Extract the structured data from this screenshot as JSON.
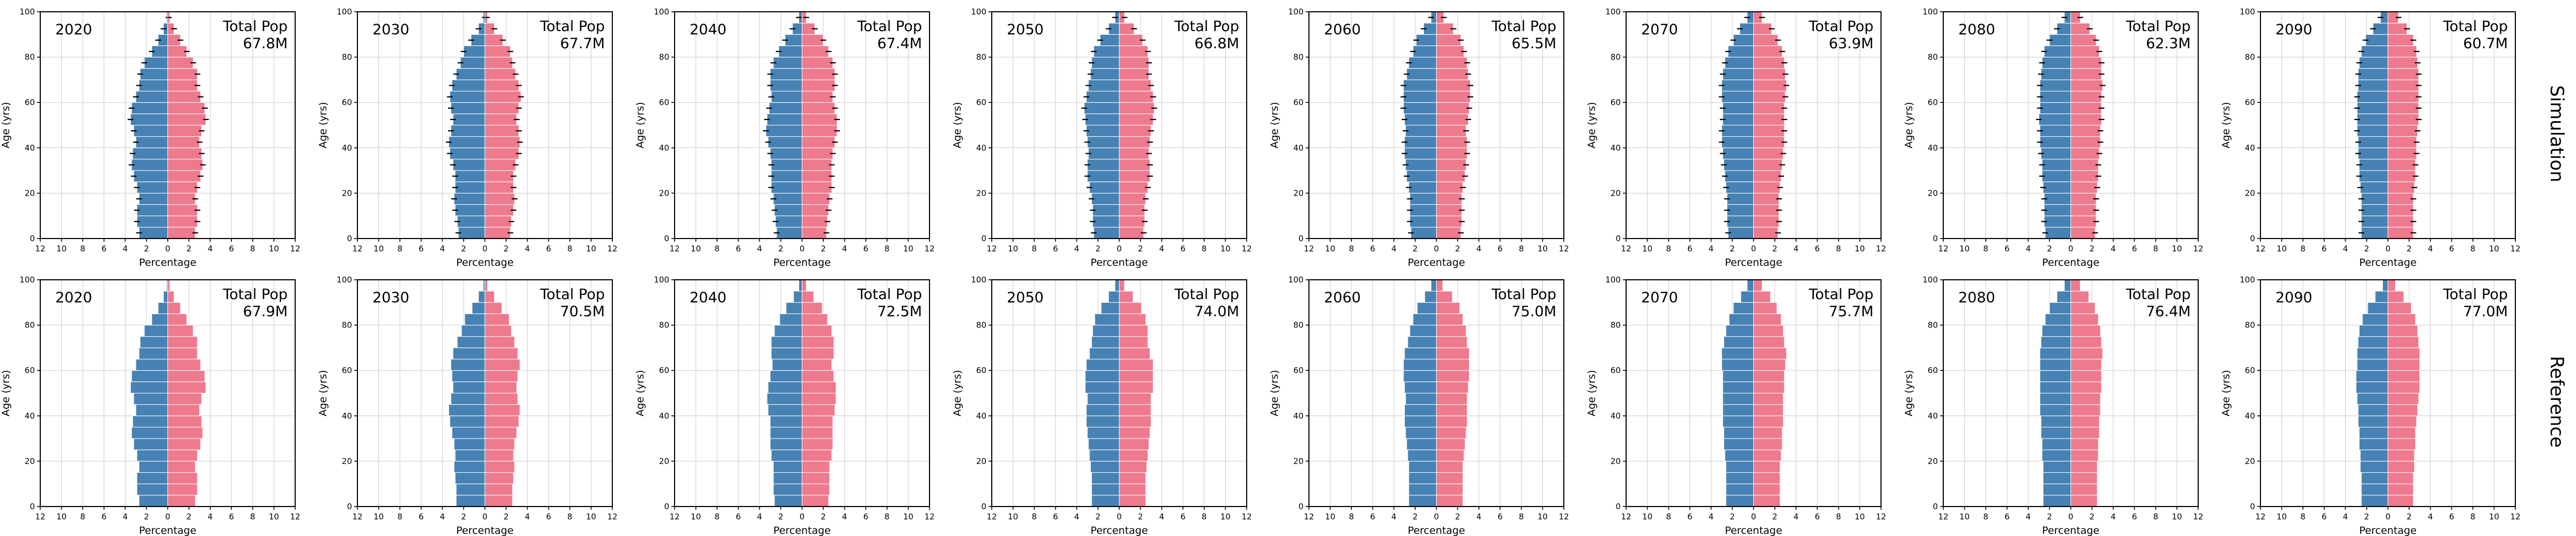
{
  "chart_data": {
    "type": "bar",
    "subtype": "population-pyramid-grid",
    "grid": {
      "rows": 2,
      "cols": 8
    },
    "row_labels": [
      "Simulation",
      "Reference"
    ],
    "total_pop_label": "Total Pop",
    "xlabel": "Percentage",
    "ylabel": "Age (yrs)",
    "x_tick_abs": [
      12,
      10,
      8,
      6,
      4,
      2,
      0,
      2,
      4,
      6,
      8,
      10,
      12
    ],
    "y_ticks": [
      0,
      20,
      40,
      60,
      80,
      100
    ],
    "xlim": [
      -12,
      12
    ],
    "ylim": [
      0,
      100
    ],
    "age_bin_years": 5,
    "grid_on": true,
    "colors": {
      "male": "#4682b4",
      "female": "#ee7a8e",
      "gridline": "#cccccc",
      "spine": "#000000",
      "error_bar": "#000000",
      "background": "#ffffff"
    },
    "charts": [
      {
        "row": "Simulation",
        "year": "2020",
        "total_pop": "67.8M",
        "error_bars": true,
        "error_half_pct": 0.27,
        "male_pct": [
          2.7,
          2.9,
          2.9,
          2.7,
          2.9,
          3.2,
          3.4,
          3.3,
          3.0,
          3.2,
          3.5,
          3.4,
          3.0,
          2.7,
          2.6,
          2.2,
          1.5,
          0.9,
          0.4,
          0.1
        ],
        "female_pct": [
          2.6,
          2.8,
          2.8,
          2.6,
          2.8,
          3.1,
          3.3,
          3.2,
          3.0,
          3.2,
          3.6,
          3.5,
          3.1,
          2.8,
          2.8,
          2.4,
          1.8,
          1.2,
          0.6,
          0.2
        ]
      },
      {
        "row": "Simulation",
        "year": "2030",
        "total_pop": "67.7M",
        "error_bars": true,
        "error_half_pct": 0.27,
        "male_pct": [
          2.5,
          2.6,
          2.8,
          2.9,
          2.8,
          2.8,
          3.0,
          3.3,
          3.4,
          3.2,
          3.0,
          3.2,
          3.3,
          3.1,
          2.7,
          2.3,
          2.0,
          1.3,
          0.6,
          0.15
        ],
        "female_pct": [
          2.4,
          2.5,
          2.7,
          2.8,
          2.7,
          2.7,
          2.9,
          3.2,
          3.3,
          3.2,
          3.0,
          3.2,
          3.4,
          3.2,
          2.9,
          2.6,
          2.4,
          1.7,
          0.9,
          0.25
        ]
      },
      {
        "row": "Simulation",
        "year": "2040",
        "total_pop": "67.4M",
        "error_bars": true,
        "error_half_pct": 0.27,
        "male_pct": [
          2.4,
          2.5,
          2.6,
          2.7,
          2.9,
          2.9,
          2.9,
          3.0,
          3.2,
          3.4,
          3.3,
          3.1,
          2.9,
          3.0,
          3.0,
          2.7,
          2.2,
          1.6,
          0.9,
          0.3
        ],
        "female_pct": [
          2.3,
          2.4,
          2.5,
          2.6,
          2.8,
          2.8,
          2.8,
          2.9,
          3.1,
          3.3,
          3.3,
          3.1,
          2.9,
          3.1,
          3.1,
          2.9,
          2.5,
          2.0,
          1.2,
          0.4
        ]
      },
      {
        "row": "Simulation",
        "year": "2050",
        "total_pop": "66.8M",
        "error_bars": true,
        "error_half_pct": 0.27,
        "male_pct": [
          2.4,
          2.5,
          2.5,
          2.6,
          2.8,
          3.0,
          3.0,
          2.9,
          3.0,
          3.1,
          3.2,
          3.3,
          3.1,
          2.9,
          2.7,
          2.6,
          2.4,
          1.8,
          1.0,
          0.4
        ],
        "female_pct": [
          2.3,
          2.4,
          2.4,
          2.5,
          2.7,
          2.9,
          2.9,
          2.8,
          2.9,
          3.0,
          3.2,
          3.3,
          3.2,
          3.0,
          2.8,
          2.8,
          2.7,
          2.2,
          1.4,
          0.5
        ]
      },
      {
        "row": "Simulation",
        "year": "2060",
        "total_pop": "65.5M",
        "error_bars": true,
        "error_half_pct": 0.27,
        "male_pct": [
          2.4,
          2.5,
          2.5,
          2.5,
          2.6,
          2.8,
          2.9,
          3.0,
          3.0,
          2.9,
          3.0,
          3.1,
          3.1,
          3.1,
          2.8,
          2.6,
          2.2,
          1.9,
          1.2,
          0.5
        ],
        "female_pct": [
          2.3,
          2.4,
          2.4,
          2.4,
          2.5,
          2.7,
          2.8,
          2.9,
          2.9,
          2.8,
          3.0,
          3.1,
          3.2,
          3.2,
          3.0,
          2.9,
          2.6,
          2.3,
          1.6,
          0.7
        ]
      },
      {
        "row": "Simulation",
        "year": "2070",
        "total_pop": "63.9M",
        "error_bars": true,
        "error_half_pct": 0.27,
        "male_pct": [
          2.4,
          2.5,
          2.5,
          2.5,
          2.6,
          2.7,
          2.8,
          2.9,
          3.0,
          3.0,
          2.9,
          2.9,
          3.0,
          3.0,
          2.9,
          2.7,
          2.4,
          1.9,
          1.3,
          0.6
        ],
        "female_pct": [
          2.3,
          2.4,
          2.4,
          2.4,
          2.5,
          2.6,
          2.7,
          2.8,
          2.9,
          2.9,
          2.9,
          2.9,
          3.0,
          3.1,
          3.0,
          2.9,
          2.7,
          2.3,
          1.7,
          0.8
        ]
      },
      {
        "row": "Simulation",
        "year": "2080",
        "total_pop": "62.3M",
        "error_bars": true,
        "error_half_pct": 0.27,
        "male_pct": [
          2.4,
          2.5,
          2.5,
          2.5,
          2.6,
          2.7,
          2.7,
          2.8,
          2.9,
          2.9,
          3.0,
          2.9,
          2.9,
          2.9,
          2.8,
          2.7,
          2.5,
          2.0,
          1.3,
          0.6
        ],
        "female_pct": [
          2.3,
          2.4,
          2.4,
          2.4,
          2.5,
          2.6,
          2.6,
          2.7,
          2.8,
          2.8,
          2.9,
          2.9,
          2.9,
          3.0,
          2.9,
          2.9,
          2.7,
          2.4,
          1.8,
          0.9
        ]
      },
      {
        "row": "Simulation",
        "year": "2090",
        "total_pop": "60.7M",
        "error_bars": true,
        "error_half_pct": 0.27,
        "male_pct": [
          2.5,
          2.5,
          2.5,
          2.5,
          2.6,
          2.7,
          2.7,
          2.8,
          2.8,
          2.9,
          2.9,
          2.9,
          2.9,
          2.8,
          2.8,
          2.7,
          2.5,
          2.1,
          1.4,
          0.7
        ],
        "female_pct": [
          2.4,
          2.4,
          2.4,
          2.4,
          2.5,
          2.6,
          2.6,
          2.7,
          2.7,
          2.8,
          2.9,
          2.9,
          2.9,
          2.9,
          2.9,
          2.8,
          2.7,
          2.4,
          1.8,
          1.0
        ]
      },
      {
        "row": "Reference",
        "year": "2020",
        "total_pop": "67.9M",
        "error_bars": false,
        "error_half_pct": 0,
        "male_pct": [
          2.7,
          2.9,
          2.9,
          2.7,
          2.9,
          3.2,
          3.4,
          3.3,
          3.0,
          3.2,
          3.5,
          3.4,
          3.0,
          2.7,
          2.6,
          2.2,
          1.5,
          0.9,
          0.4,
          0.1
        ],
        "female_pct": [
          2.6,
          2.8,
          2.8,
          2.6,
          2.8,
          3.1,
          3.3,
          3.2,
          3.0,
          3.2,
          3.6,
          3.5,
          3.1,
          2.8,
          2.8,
          2.4,
          1.8,
          1.2,
          0.6,
          0.2
        ]
      },
      {
        "row": "Reference",
        "year": "2030",
        "total_pop": "70.5M",
        "error_bars": false,
        "error_half_pct": 0,
        "male_pct": [
          2.7,
          2.7,
          2.8,
          2.9,
          2.8,
          2.9,
          3.1,
          3.3,
          3.4,
          3.2,
          3.0,
          3.1,
          3.2,
          3.0,
          2.6,
          2.2,
          1.9,
          1.2,
          0.6,
          0.15
        ],
        "female_pct": [
          2.6,
          2.6,
          2.7,
          2.8,
          2.7,
          2.8,
          3.0,
          3.2,
          3.3,
          3.1,
          3.0,
          3.1,
          3.3,
          3.1,
          2.8,
          2.5,
          2.3,
          1.6,
          0.9,
          0.25
        ]
      },
      {
        "row": "Reference",
        "year": "2040",
        "total_pop": "72.5M",
        "error_bars": false,
        "error_half_pct": 0,
        "male_pct": [
          2.6,
          2.7,
          2.7,
          2.7,
          2.9,
          3.0,
          3.0,
          3.0,
          3.2,
          3.3,
          3.2,
          3.0,
          2.8,
          2.9,
          2.9,
          2.6,
          2.1,
          1.5,
          0.8,
          0.3
        ],
        "female_pct": [
          2.5,
          2.6,
          2.6,
          2.6,
          2.8,
          2.9,
          2.9,
          2.9,
          3.1,
          3.2,
          3.2,
          3.0,
          2.8,
          3.0,
          3.0,
          2.8,
          2.4,
          1.9,
          1.1,
          0.4
        ]
      },
      {
        "row": "Reference",
        "year": "2050",
        "total_pop": "74.0M",
        "error_bars": false,
        "error_half_pct": 0,
        "male_pct": [
          2.6,
          2.6,
          2.6,
          2.7,
          2.8,
          2.9,
          3.0,
          3.1,
          3.1,
          3.0,
          3.2,
          3.2,
          3.1,
          2.8,
          2.6,
          2.5,
          2.3,
          1.7,
          1.0,
          0.4
        ],
        "female_pct": [
          2.5,
          2.5,
          2.5,
          2.6,
          2.7,
          2.8,
          2.9,
          3.0,
          3.0,
          3.0,
          3.2,
          3.2,
          3.2,
          2.9,
          2.7,
          2.7,
          2.5,
          2.1,
          1.3,
          0.5
        ]
      },
      {
        "row": "Reference",
        "year": "2060",
        "total_pop": "75.0M",
        "error_bars": false,
        "error_half_pct": 0,
        "male_pct": [
          2.6,
          2.6,
          2.6,
          2.6,
          2.7,
          2.8,
          2.9,
          3.0,
          3.0,
          2.9,
          3.0,
          3.1,
          3.1,
          3.0,
          2.7,
          2.5,
          2.2,
          1.8,
          1.1,
          0.5
        ],
        "female_pct": [
          2.5,
          2.5,
          2.5,
          2.5,
          2.6,
          2.7,
          2.8,
          2.9,
          2.9,
          2.9,
          3.0,
          3.1,
          3.1,
          3.1,
          2.9,
          2.8,
          2.5,
          2.2,
          1.5,
          0.6
        ]
      },
      {
        "row": "Reference",
        "year": "2070",
        "total_pop": "75.7M",
        "error_bars": false,
        "error_half_pct": 0,
        "male_pct": [
          2.6,
          2.6,
          2.6,
          2.6,
          2.7,
          2.8,
          2.8,
          2.9,
          2.9,
          2.9,
          2.9,
          2.9,
          3.0,
          3.0,
          2.8,
          2.6,
          2.3,
          1.9,
          1.2,
          0.6
        ],
        "female_pct": [
          2.5,
          2.5,
          2.5,
          2.5,
          2.6,
          2.7,
          2.7,
          2.8,
          2.8,
          2.8,
          2.9,
          2.9,
          3.0,
          3.1,
          2.9,
          2.8,
          2.6,
          2.2,
          1.6,
          0.8
        ]
      },
      {
        "row": "Reference",
        "year": "2080",
        "total_pop": "76.4M",
        "error_bars": false,
        "error_half_pct": 0,
        "male_pct": [
          2.6,
          2.6,
          2.6,
          2.6,
          2.7,
          2.7,
          2.8,
          2.8,
          2.9,
          2.9,
          2.9,
          2.9,
          2.9,
          2.9,
          2.8,
          2.7,
          2.4,
          2.0,
          1.3,
          0.6
        ],
        "female_pct": [
          2.5,
          2.5,
          2.5,
          2.5,
          2.6,
          2.6,
          2.7,
          2.7,
          2.8,
          2.8,
          2.9,
          2.9,
          2.9,
          3.0,
          2.9,
          2.8,
          2.6,
          2.3,
          1.7,
          0.9
        ]
      },
      {
        "row": "Reference",
        "year": "2090",
        "total_pop": "77.0M",
        "error_bars": false,
        "error_half_pct": 0,
        "male_pct": [
          2.5,
          2.5,
          2.5,
          2.6,
          2.6,
          2.7,
          2.7,
          2.8,
          2.8,
          2.9,
          3.0,
          3.0,
          2.9,
          2.9,
          2.8,
          2.7,
          2.4,
          1.9,
          1.2,
          0.5
        ],
        "female_pct": [
          2.4,
          2.4,
          2.4,
          2.5,
          2.5,
          2.6,
          2.6,
          2.7,
          2.8,
          2.9,
          3.0,
          3.0,
          3.0,
          3.0,
          2.9,
          2.8,
          2.6,
          2.2,
          1.5,
          0.7
        ]
      }
    ]
  }
}
